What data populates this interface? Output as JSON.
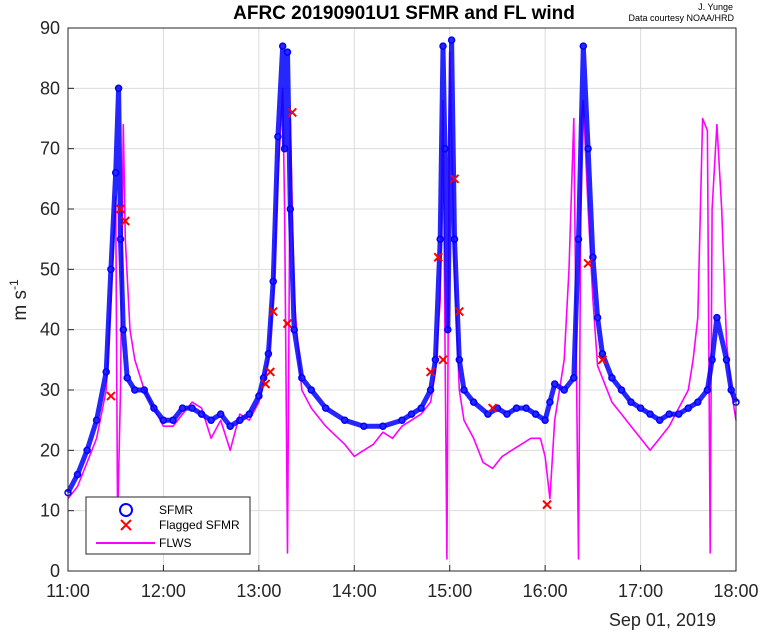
{
  "chart_data": {
    "type": "line",
    "title": "AFRC 20190901U1 SFMR and FL wind",
    "credit_author": "J. Yunge",
    "credit_source": "Data courtesy NOAA/HRD",
    "xlabel": "",
    "date_label": "Sep 01, 2019",
    "ylabel": "m s",
    "ylabel_sup": "-1",
    "x_ticks": [
      "11:00",
      "12:00",
      "13:00",
      "14:00",
      "15:00",
      "16:00",
      "17:00",
      "18:00"
    ],
    "xlim": [
      11,
      18
    ],
    "y_ticks": [
      "0",
      "10",
      "20",
      "30",
      "40",
      "50",
      "60",
      "70",
      "80",
      "90"
    ],
    "ylim": [
      0,
      90
    ],
    "grid": true,
    "legend_position": "bottom-left",
    "colors": {
      "sfmr": "#0000ff",
      "flagged": "#ff0000",
      "flws": "#ff00ff"
    },
    "series": [
      {
        "name": "SFMR",
        "marker": "circle",
        "x": [
          11.0,
          11.1,
          11.2,
          11.3,
          11.4,
          11.45,
          11.5,
          11.53,
          11.55,
          11.58,
          11.62,
          11.7,
          11.8,
          11.9,
          12.0,
          12.1,
          12.2,
          12.3,
          12.4,
          12.5,
          12.6,
          12.7,
          12.8,
          12.9,
          13.0,
          13.05,
          13.1,
          13.15,
          13.2,
          13.25,
          13.27,
          13.3,
          13.33,
          13.37,
          13.45,
          13.55,
          13.7,
          13.9,
          14.1,
          14.3,
          14.5,
          14.6,
          14.7,
          14.8,
          14.85,
          14.9,
          14.93,
          14.95,
          14.98,
          15.02,
          15.05,
          15.1,
          15.15,
          15.25,
          15.4,
          15.5,
          15.6,
          15.7,
          15.8,
          15.9,
          16.0,
          16.05,
          16.1,
          16.2,
          16.3,
          16.35,
          16.4,
          16.45,
          16.5,
          16.55,
          16.6,
          16.7,
          16.8,
          16.9,
          17.0,
          17.1,
          17.2,
          17.3,
          17.4,
          17.5,
          17.6,
          17.7,
          17.75,
          17.8,
          17.9,
          17.95,
          18.0
        ],
        "y": [
          13,
          16,
          20,
          25,
          33,
          50,
          66,
          80,
          55,
          40,
          32,
          30,
          30,
          27,
          25,
          25,
          27,
          27,
          26,
          25,
          26,
          24,
          25,
          26,
          29,
          32,
          36,
          48,
          72,
          87,
          70,
          86,
          60,
          40,
          32,
          30,
          27,
          25,
          24,
          24,
          25,
          26,
          27,
          30,
          35,
          55,
          87,
          70,
          40,
          88,
          55,
          35,
          30,
          28,
          26,
          27,
          26,
          27,
          27,
          26,
          25,
          28,
          31,
          30,
          32,
          55,
          87,
          70,
          52,
          42,
          36,
          32,
          30,
          28,
          27,
          26,
          25,
          26,
          26,
          27,
          28,
          30,
          35,
          42,
          35,
          30,
          28
        ]
      },
      {
        "name": "Flagged SFMR",
        "marker": "x",
        "x": [
          11.45,
          11.55,
          11.6,
          13.07,
          13.12,
          13.15,
          13.3,
          13.35,
          14.8,
          14.88,
          14.93,
          15.05,
          15.1,
          15.45,
          16.02,
          16.45,
          16.6
        ],
        "y": [
          29,
          60,
          58,
          31,
          33,
          43,
          41,
          76,
          33,
          52,
          35,
          65,
          43,
          27,
          11,
          51,
          35
        ]
      },
      {
        "name": "FLWS",
        "marker": "line",
        "x": [
          11.0,
          11.1,
          11.2,
          11.3,
          11.4,
          11.45,
          11.5,
          11.52,
          11.55,
          11.58,
          11.6,
          11.65,
          11.7,
          11.8,
          11.9,
          12.0,
          12.1,
          12.2,
          12.3,
          12.4,
          12.5,
          12.6,
          12.7,
          12.8,
          12.9,
          13.0,
          13.05,
          13.1,
          13.15,
          13.2,
          13.25,
          13.27,
          13.3,
          13.33,
          13.37,
          13.45,
          13.55,
          13.7,
          13.9,
          14.0,
          14.1,
          14.2,
          14.3,
          14.4,
          14.5,
          14.6,
          14.7,
          14.8,
          14.85,
          14.9,
          14.93,
          14.95,
          14.97,
          15.0,
          15.05,
          15.1,
          15.15,
          15.25,
          15.35,
          15.45,
          15.55,
          15.65,
          15.75,
          15.85,
          15.95,
          16.0,
          16.05,
          16.1,
          16.15,
          16.2,
          16.25,
          16.3,
          16.35,
          16.38,
          16.4,
          16.45,
          16.5,
          16.55,
          16.6,
          16.7,
          16.8,
          16.9,
          17.0,
          17.1,
          17.2,
          17.3,
          17.4,
          17.5,
          17.55,
          17.6,
          17.65,
          17.7,
          17.73,
          17.75,
          17.8,
          17.85,
          17.9,
          17.95,
          18.0
        ],
        "y": [
          12,
          14,
          18,
          22,
          30,
          45,
          62,
          8,
          30,
          74,
          55,
          40,
          35,
          30,
          27,
          24,
          24,
          26,
          28,
          27,
          22,
          25,
          20,
          26,
          25,
          28,
          31,
          35,
          45,
          65,
          80,
          60,
          3,
          75,
          45,
          30,
          27,
          24,
          21,
          19,
          20,
          21,
          23,
          22,
          24,
          25,
          26,
          28,
          33,
          45,
          78,
          40,
          2,
          86,
          50,
          30,
          25,
          22,
          18,
          17,
          19,
          20,
          21,
          22,
          22,
          19,
          12,
          25,
          30,
          35,
          50,
          75,
          2,
          75,
          78,
          60,
          45,
          34,
          32,
          28,
          26,
          24,
          22,
          20,
          22,
          24,
          27,
          30,
          35,
          42,
          75,
          73,
          3,
          60,
          74,
          60,
          38,
          30,
          25
        ]
      }
    ]
  }
}
